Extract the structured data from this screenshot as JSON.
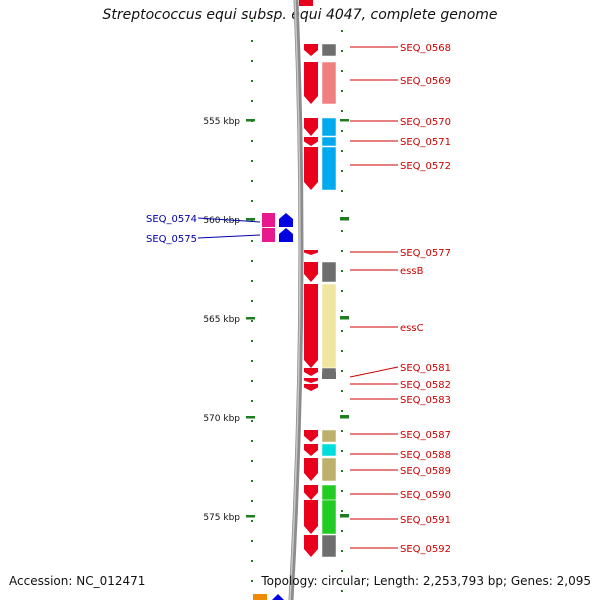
{
  "title": "Streptococcus equi subsp. equi 4047, complete genome",
  "footer": {
    "accession": "Accession: NC_012471",
    "summary": "Topology: circular; Length: 2,253,793 bp; Genes: 2,095"
  },
  "colors": {
    "backbone": "#8c8c8c",
    "tick": "#1e7d1e",
    "forward_cds": "#e8001c",
    "forward_label": "#cc0000",
    "reverse_cds_magenta": "#e8198c",
    "reverse_cds_blue": "#0000e0",
    "reverse_label": "#0000aa",
    "fn_gray": "#6e6e6e",
    "fn_pink": "#f08080",
    "fn_cyan": "#00aaee",
    "fn_yellow": "#f0e6a0",
    "fn_khaki": "#bdb06a",
    "fn_green": "#22cc22"
  },
  "scale": {
    "ticks": [
      {
        "kbp": 555,
        "label": "555 kbp"
      },
      {
        "kbp": 560,
        "label": "560 kbp"
      },
      {
        "kbp": 565,
        "label": "565 kbp"
      },
      {
        "kbp": 570,
        "label": "570 kbp"
      },
      {
        "kbp": 575,
        "label": "575 kbp"
      }
    ]
  },
  "forward_genes": [
    {
      "id": "SEQ_0568",
      "start_kbp": 552.1,
      "end_kbp": 552.8,
      "func_color": "#6e6e6e"
    },
    {
      "id": "SEQ_0569",
      "start_kbp": 552.9,
      "end_kbp": 554.8,
      "func_color": "#f08080"
    },
    {
      "id": "SEQ_0570",
      "start_kbp": 555.0,
      "end_kbp": 555.9,
      "func_color": "#00aaee"
    },
    {
      "id": "SEQ_0571",
      "start_kbp": 556.0,
      "end_kbp": 556.4,
      "func_color": "#00aaee"
    },
    {
      "id": "SEQ_0572",
      "start_kbp": 556.5,
      "end_kbp": 558.6,
      "func_color": "#00aaee"
    },
    {
      "id": "SEQ_0577",
      "start_kbp": 561.6,
      "end_kbp": 561.9,
      "func_color": ""
    },
    {
      "id": "essB",
      "start_kbp": 562.1,
      "end_kbp": 563.2,
      "func_color": "#6e6e6e"
    },
    {
      "id": "essC",
      "start_kbp": 563.3,
      "end_kbp": 567.9,
      "func_color": "#f0e6a0"
    },
    {
      "id": "SEQ_0581",
      "start_kbp": 567.6,
      "end_kbp": 567.9,
      "func_color": "#6e6e6e"
    },
    {
      "id": "SEQ_0582",
      "start_kbp": 568.0,
      "end_kbp": 568.3,
      "func_color": ""
    },
    {
      "id": "SEQ_0583",
      "start_kbp": 568.3,
      "end_kbp": 568.7,
      "func_color": ""
    },
    {
      "id": "SEQ_0587",
      "start_kbp": 570.5,
      "end_kbp": 571.2,
      "func_color": "#bdb06a"
    },
    {
      "id": "SEQ_0588",
      "start_kbp": 571.3,
      "end_kbp": 571.9,
      "func_color": "#00dddd"
    },
    {
      "id": "SEQ_0589",
      "start_kbp": 572.0,
      "end_kbp": 572.7,
      "func_color": "#bdb06a"
    },
    {
      "id": "SEQ_0590",
      "start_kbp": 573.1,
      "end_kbp": 574.0,
      "func_color": "#22cc22"
    },
    {
      "id": "SEQ_0591",
      "start_kbp": 574.0,
      "end_kbp": 575.8,
      "func_color": "#22cc22"
    },
    {
      "id": "SEQ_0592",
      "start_kbp": 575.9,
      "end_kbp": 577.1,
      "func_color": "#6e6e6e"
    }
  ],
  "reverse_genes": [
    {
      "id": "SEQ_0574",
      "start_kbp": 559.7,
      "end_kbp": 560.4,
      "color": "#e8198c"
    },
    {
      "id": "SEQ_0575",
      "start_kbp": 560.4,
      "end_kbp": 561.0,
      "color": "#e8198c"
    }
  ]
}
